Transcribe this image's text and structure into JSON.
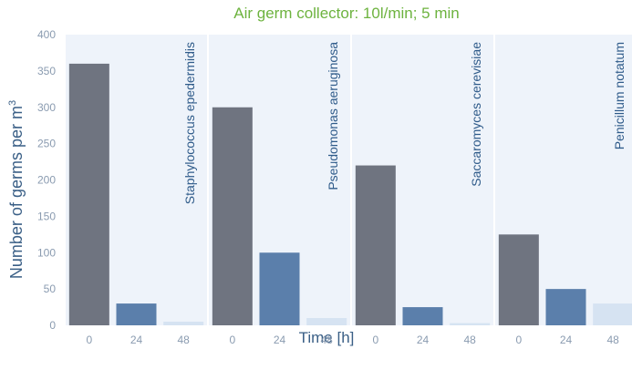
{
  "chart_data": {
    "type": "bar",
    "title": "Air germ collector: 10l/min; 5 min",
    "ylabel_main": "Number of germs per m",
    "ylabel_sup": "3",
    "xlabel": "Time [h]",
    "ylim": [
      0,
      400
    ],
    "yticks": [
      0,
      50,
      100,
      150,
      200,
      250,
      300,
      350,
      400
    ],
    "categories": [
      "0",
      "24",
      "48"
    ],
    "bar_colors": [
      "#6f7480",
      "#5b7fab",
      "#d6e3f2"
    ],
    "panel_bg": "#eef3fa",
    "panels": [
      {
        "name": "Staphylococcus epedermidis",
        "values": [
          360,
          30,
          5
        ]
      },
      {
        "name": "Pseudomonas aeruginosa",
        "values": [
          300,
          100,
          10
        ]
      },
      {
        "name": "Saccaromyces cerevisiae",
        "values": [
          220,
          25,
          3
        ]
      },
      {
        "name": "Penicillum notatum",
        "values": [
          125,
          50,
          30
        ]
      }
    ]
  }
}
